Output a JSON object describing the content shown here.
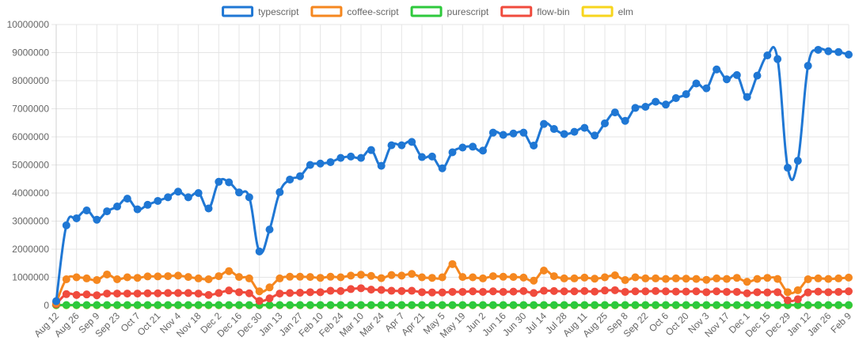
{
  "chart_data": {
    "type": "line",
    "legend_position": "top",
    "grid": true,
    "ylim": [
      0,
      10000000
    ],
    "y_ticks": [
      0,
      1000000,
      2000000,
      3000000,
      4000000,
      5000000,
      6000000,
      7000000,
      8000000,
      9000000,
      10000000
    ],
    "x_tick_labels": [
      "Aug 12",
      "Aug 26",
      "Sep 9",
      "Sep 23",
      "Oct 7",
      "Oct 21",
      "Nov 4",
      "Nov 18",
      "Dec 2",
      "Dec 16",
      "Dec 30",
      "Jan 13",
      "Jan 27",
      "Feb 10",
      "Feb 24",
      "Mar 10",
      "Mar 24",
      "Apr 7",
      "Apr 21",
      "May 5",
      "May 19",
      "Jun 2",
      "Jun 16",
      "Jun 30",
      "Jul 14",
      "Jul 28",
      "Aug 11",
      "Aug 25",
      "Sep 8",
      "Sep 22",
      "Oct 6",
      "Oct 20",
      "Nov 3",
      "Nov 17",
      "Dec 1",
      "Dec 15",
      "Dec 29",
      "Jan 12",
      "Jan 26",
      "Feb 9"
    ],
    "series": [
      {
        "name": "typescript",
        "color": "#1f77d4",
        "values": [
          150000,
          2850000,
          3100000,
          3380000,
          3050000,
          3350000,
          3520000,
          3800000,
          3420000,
          3580000,
          3720000,
          3850000,
          4050000,
          3850000,
          4000000,
          3450000,
          4400000,
          4380000,
          4020000,
          3850000,
          1920000,
          2700000,
          4030000,
          4480000,
          4600000,
          5000000,
          5050000,
          5100000,
          5250000,
          5300000,
          5250000,
          5530000,
          4970000,
          5700000,
          5700000,
          5820000,
          5280000,
          5300000,
          4880000,
          5450000,
          5620000,
          5650000,
          5510000,
          6150000,
          6070000,
          6120000,
          6150000,
          5690000,
          6460000,
          6280000,
          6100000,
          6180000,
          6320000,
          6050000,
          6480000,
          6870000,
          6570000,
          7030000,
          7070000,
          7250000,
          7150000,
          7380000,
          7520000,
          7900000,
          7730000,
          8400000,
          8050000,
          8200000,
          7420000,
          8180000,
          8900000,
          8770000,
          4900000,
          5150000,
          8530000,
          9100000,
          9050000,
          9020000,
          8930000
        ]
      },
      {
        "name": "coffee-script",
        "color": "#f5871f",
        "values": [
          80000,
          930000,
          1000000,
          960000,
          900000,
          1100000,
          930000,
          1000000,
          980000,
          1030000,
          1030000,
          1040000,
          1060000,
          1010000,
          960000,
          930000,
          1040000,
          1220000,
          1010000,
          960000,
          500000,
          640000,
          960000,
          1020000,
          1020000,
          1010000,
          980000,
          1020000,
          1000000,
          1060000,
          1090000,
          1050000,
          970000,
          1080000,
          1060000,
          1120000,
          1000000,
          980000,
          1000000,
          1470000,
          1010000,
          1000000,
          960000,
          1040000,
          1020000,
          1010000,
          990000,
          880000,
          1240000,
          1040000,
          960000,
          960000,
          990000,
          950000,
          1000000,
          1070000,
          900000,
          1000000,
          960000,
          960000,
          940000,
          960000,
          950000,
          940000,
          910000,
          960000,
          940000,
          980000,
          840000,
          940000,
          980000,
          940000,
          470000,
          540000,
          930000,
          960000,
          940000,
          960000,
          990000
        ]
      },
      {
        "name": "purescript",
        "color": "#2ec93c",
        "values": [
          10000,
          10000,
          10000,
          10000,
          10000,
          10000,
          10000,
          10000,
          10000,
          10000,
          10000,
          10000,
          10000,
          10000,
          10000,
          10000,
          10000,
          10000,
          10000,
          10000,
          10000,
          10000,
          10000,
          10000,
          10000,
          10000,
          10000,
          10000,
          10000,
          10000,
          10000,
          10000,
          10000,
          10000,
          10000,
          10000,
          10000,
          10000,
          10000,
          10000,
          10000,
          10000,
          10000,
          10000,
          10000,
          10000,
          10000,
          10000,
          10000,
          10000,
          10000,
          10000,
          10000,
          10000,
          10000,
          10000,
          10000,
          10000,
          10000,
          10000,
          10000,
          10000,
          10000,
          10000,
          10000,
          10000,
          10000,
          10000,
          10000,
          10000,
          10000,
          10000,
          10000,
          10000,
          10000,
          10000,
          10000,
          10000,
          10000
        ]
      },
      {
        "name": "flow-bin",
        "color": "#f04b3d",
        "values": [
          40000,
          400000,
          370000,
          390000,
          360000,
          420000,
          420000,
          420000,
          420000,
          430000,
          430000,
          440000,
          440000,
          440000,
          420000,
          370000,
          440000,
          530000,
          470000,
          430000,
          160000,
          250000,
          420000,
          440000,
          450000,
          470000,
          470000,
          520000,
          510000,
          580000,
          610000,
          560000,
          550000,
          520000,
          510000,
          520000,
          470000,
          460000,
          460000,
          480000,
          480000,
          500000,
          480000,
          500000,
          480000,
          490000,
          510000,
          440000,
          520000,
          510000,
          500000,
          500000,
          510000,
          490000,
          530000,
          540000,
          480000,
          500000,
          500000,
          510000,
          500000,
          490000,
          490000,
          500000,
          470000,
          500000,
          480000,
          480000,
          430000,
          470000,
          460000,
          470000,
          180000,
          220000,
          460000,
          490000,
          470000,
          480000,
          500000
        ]
      },
      {
        "name": "elm",
        "color": "#f7d51d",
        "values": [
          5000,
          5000,
          5000,
          5000,
          5000,
          5000,
          5000,
          5000,
          5000,
          5000,
          5000,
          5000,
          5000,
          5000,
          5000,
          5000,
          5000,
          5000,
          5000,
          5000,
          5000,
          5000,
          5000,
          5000,
          5000,
          5000,
          5000,
          5000,
          5000,
          5000,
          5000,
          5000,
          5000,
          5000,
          5000,
          5000,
          5000,
          5000,
          5000,
          5000,
          5000,
          5000,
          5000,
          5000,
          5000,
          5000,
          5000,
          5000,
          5000,
          5000,
          5000,
          5000,
          5000,
          5000,
          5000,
          5000,
          5000,
          5000,
          5000,
          5000,
          5000,
          5000,
          5000,
          5000,
          5000,
          5000,
          5000,
          5000,
          5000,
          5000,
          5000,
          5000,
          5000,
          5000,
          5000,
          5000,
          5000,
          5000,
          5000
        ]
      }
    ]
  }
}
